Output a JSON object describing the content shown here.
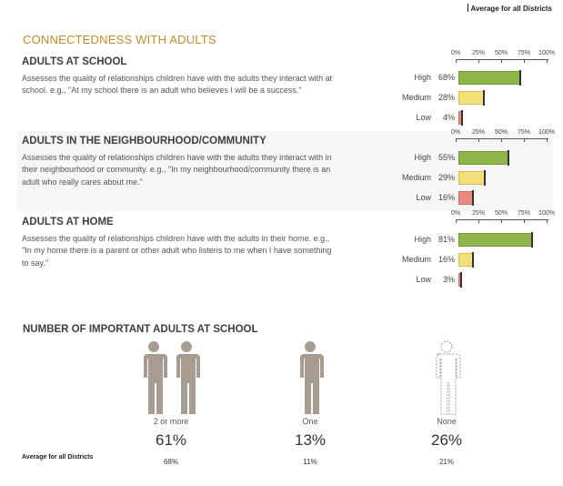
{
  "legend_label": "Average for all Districts",
  "section_title": "CONNECTEDNESS WITH ADULTS",
  "axis_ticks": [
    "0%",
    "25%",
    "50%",
    "75%",
    "100%"
  ],
  "blocks": [
    {
      "title": "ADULTS AT SCHOOL",
      "description": "Assesses the quality of relationships children have with the adults they interact with at school. e.g., \"At my school there is an adult who believes I will be a success.\"",
      "rows": [
        {
          "label": "High",
          "value": "68%",
          "pct": 68
        },
        {
          "label": "Medium",
          "value": "28%",
          "pct": 28
        },
        {
          "label": "Low",
          "value": "4%",
          "pct": 4
        }
      ]
    },
    {
      "title": "ADULTS IN THE NEIGHBOURHOOD/COMMUNITY",
      "description": "Assesses the quality of relationships children have with the adults they interact with in their neighbourhood or community. e.g., \"In my neighbourhood/community there is an adult who really cares about me.\"",
      "rows": [
        {
          "label": "High",
          "value": "55%",
          "pct": 55
        },
        {
          "label": "Medium",
          "value": "29%",
          "pct": 29
        },
        {
          "label": "Low",
          "value": "16%",
          "pct": 16
        }
      ]
    },
    {
      "title": "ADULTS AT HOME",
      "description": "Assesses the quality of relationships children have with the adults in their home. e.g., \"In my home there is a parent or other adult who listens to me when I have something to say.\"",
      "rows": [
        {
          "label": "High",
          "value": "81%",
          "pct": 81
        },
        {
          "label": "Medium",
          "value": "16%",
          "pct": 16
        },
        {
          "label": "Low",
          "value": "3%",
          "pct": 3
        }
      ]
    }
  ],
  "section2_title": "NUMBER OF IMPORTANT ADULTS AT SCHOOL",
  "avg_row_label": "Average for all Districts",
  "groups": [
    {
      "category": "2 or more",
      "percent": "61%",
      "average": "68%",
      "icon": "two-people-icon"
    },
    {
      "category": "One",
      "percent": "13%",
      "average": "11%",
      "icon": "person-icon"
    },
    {
      "category": "None",
      "percent": "26%",
      "average": "21%",
      "icon": "person-outline-icon"
    }
  ],
  "colors": {
    "accent": "#c08a2e",
    "high": "#8db54a",
    "medium": "#f4e07a",
    "low": "#e98a82",
    "person": "#a89c90"
  }
}
